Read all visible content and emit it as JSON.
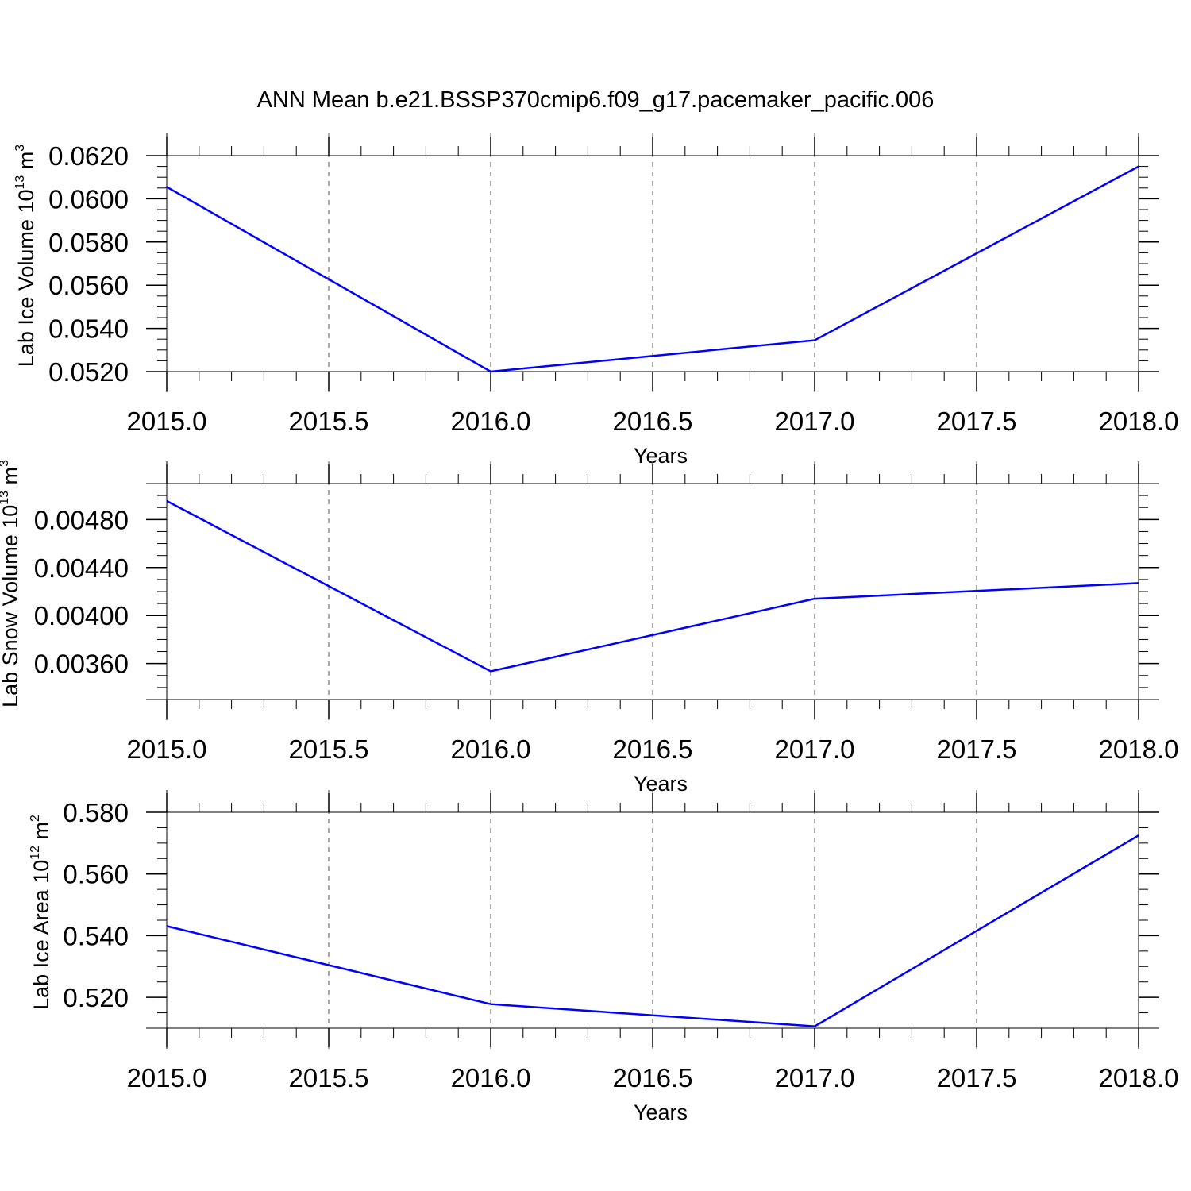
{
  "figure": {
    "title": "ANN Mean b.e21.BSSP370cmip6.f09_g17.pacemaker_pacific.006",
    "line_color": "#0000ff",
    "axis_color": "#000000",
    "grid_color": "#555555"
  },
  "chart_data": [
    {
      "type": "line",
      "xlabel": "Years",
      "ylabel": {
        "text": "Lab Ice Volume 10",
        "exponent": "13",
        "unit": " m",
        "unit_exponent": "3"
      },
      "x": [
        2015,
        2016,
        2017,
        2018
      ],
      "xticks": [
        2015.0,
        2015.5,
        2016.0,
        2016.5,
        2017.0,
        2017.5,
        2018.0
      ],
      "xtick_labels": [
        "2015.0",
        "2015.5",
        "2016.0",
        "2016.5",
        "2017.0",
        "2017.5",
        "2018.0"
      ],
      "xlim": [
        2015,
        2018
      ],
      "series": [
        {
          "values": [
            0.06055,
            0.052,
            0.05345,
            0.0615
          ]
        }
      ],
      "ylim": [
        0.052,
        0.062
      ],
      "yticks": [
        0.052,
        0.054,
        0.056,
        0.058,
        0.06,
        0.062
      ],
      "ytick_labels": [
        "0.0520",
        "0.0540",
        "0.0560",
        "0.0580",
        "0.0600",
        "0.0620"
      ],
      "minor_ystep": 0.0005,
      "grid": "vertical-dashed"
    },
    {
      "type": "line",
      "xlabel": "Years",
      "ylabel": {
        "text": "Lab Snow Volume 10",
        "exponent": "13",
        "unit": " m",
        "unit_exponent": "3"
      },
      "x": [
        2015,
        2016,
        2017,
        2018
      ],
      "xticks": [
        2015.0,
        2015.5,
        2016.0,
        2016.5,
        2017.0,
        2017.5,
        2018.0
      ],
      "xtick_labels": [
        "2015.0",
        "2015.5",
        "2016.0",
        "2016.5",
        "2017.0",
        "2017.5",
        "2018.0"
      ],
      "xlim": [
        2015,
        2018
      ],
      "series": [
        {
          "values": [
            0.004955,
            0.003535,
            0.00414,
            0.00427
          ]
        }
      ],
      "ylim": [
        0.0033,
        0.0051
      ],
      "yticks": [
        0.0036,
        0.004,
        0.0044,
        0.0048
      ],
      "ytick_labels": [
        "0.00360",
        "0.00400",
        "0.00440",
        "0.00480"
      ],
      "minor_ystep": 0.0001,
      "grid": "vertical-dashed"
    },
    {
      "type": "line",
      "xlabel": "Years",
      "ylabel": {
        "text": "Lab Ice Area 10",
        "exponent": "12",
        "unit": " m",
        "unit_exponent": "2"
      },
      "x": [
        2015,
        2016,
        2017,
        2018
      ],
      "xticks": [
        2015.0,
        2015.5,
        2016.0,
        2016.5,
        2017.0,
        2017.5,
        2018.0
      ],
      "xtick_labels": [
        "2015.0",
        "2015.5",
        "2016.0",
        "2016.5",
        "2017.0",
        "2017.5",
        "2018.0"
      ],
      "xlim": [
        2015,
        2018
      ],
      "series": [
        {
          "values": [
            0.5431,
            0.5178,
            0.5106,
            0.5725
          ]
        }
      ],
      "ylim": [
        0.51,
        0.58
      ],
      "yticks": [
        0.52,
        0.54,
        0.56,
        0.58
      ],
      "ytick_labels": [
        "0.520",
        "0.540",
        "0.560",
        "0.580"
      ],
      "minor_ystep": 0.005,
      "grid": "vertical-dashed"
    }
  ]
}
